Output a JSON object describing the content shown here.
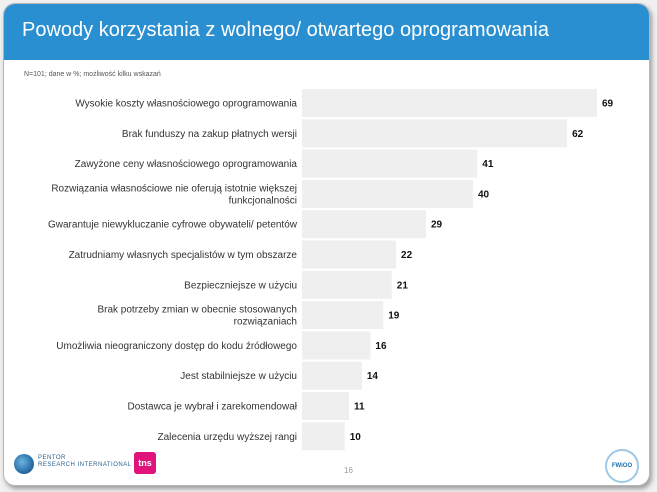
{
  "slide": {
    "title": "Powody korzystania z wolnego/ otwartego oprogramowania",
    "note": "N=101; dane w %; możliwość kilku wskazań",
    "page_number": "16",
    "logo_pentor_line1": "PENTOR",
    "logo_pentor_line2": "RESEARCH INTERNATIONAL",
    "logo_tns": "tns",
    "logo_fwioo": "FWiOO"
  },
  "colors": {
    "header": "#2a8fd0",
    "bar": "#efefef"
  },
  "chart_data": {
    "type": "bar",
    "orientation": "horizontal",
    "categories": [
      [
        "Wysokie koszty własnościowego oprogramowania"
      ],
      [
        "Brak funduszy na zakup płatnych wersji"
      ],
      [
        "Zawyżone ceny własnościowego oprogramowania"
      ],
      [
        "Rozwiązania własnościowe nie oferują istotnie większej",
        "funkcjonalności"
      ],
      [
        "Gwarantuje niewykluczanie cyfrowe obywateli/ petentów"
      ],
      [
        "Zatrudniamy własnych specjalistów w tym obszarze"
      ],
      [
        "Bezpieczniejsze w użyciu"
      ],
      [
        "Brak potrzeby zmian w obecnie stosowanych",
        "rozwiązaniach"
      ],
      [
        "Umożliwia nieograniczony dostęp do kodu źródłowego"
      ],
      [
        "Jest stabilniejsze w użyciu"
      ],
      [
        "Dostawca je wybrał i zarekomendował"
      ],
      [
        "Zalecenia urzędu wyższej rangi"
      ]
    ],
    "values": [
      69,
      62,
      41,
      40,
      29,
      22,
      21,
      19,
      16,
      14,
      11,
      10
    ],
    "value_labels": [
      "69",
      "62",
      "41",
      "40",
      "29",
      "22",
      "21",
      "19",
      "16",
      "14",
      "11",
      "10"
    ],
    "xlim": [
      0,
      69
    ],
    "grid": false,
    "legend": "none"
  }
}
